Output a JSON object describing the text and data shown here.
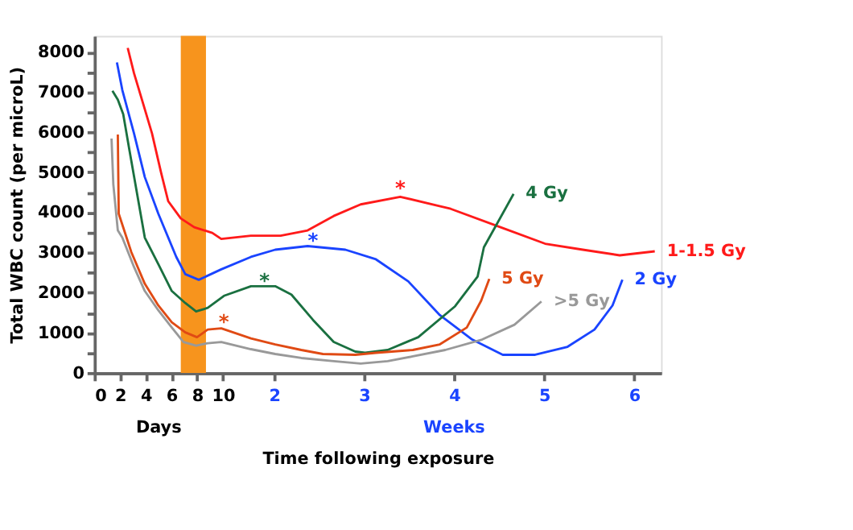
{
  "chart_data": {
    "type": "line",
    "xlabel": "Time following exposure",
    "ylabel": "Total WBC count (per microL)",
    "xlim": [
      0,
      6.3
    ],
    "xticks": [
      2,
      3,
      4,
      5,
      6
    ],
    "x2lim": [
      0,
      44.1
    ],
    "x2ticks": [
      0,
      2,
      4,
      6,
      8,
      10
    ],
    "ylim": [
      0,
      8400
    ],
    "yticks": [
      0,
      {
        "value": 500,
        "label": null
      },
      1000,
      {
        "value": 1500,
        "label": null
      },
      2000,
      {
        "value": 2500,
        "label": null
      },
      3000,
      {
        "value": 3500,
        "label": null
      },
      4000,
      {
        "value": 4500,
        "label": null
      },
      5000,
      {
        "value": 5500,
        "label": null
      },
      6000,
      {
        "value": 6500,
        "label": null
      },
      7000,
      {
        "value": 7500,
        "label": null
      },
      8000
    ],
    "bands": [
      {
        "axis": "x",
        "from": 0.96,
        "to": 1.24,
        "color": "#f7941d"
      }
    ],
    "annotations": [
      "Days",
      "Weeks",
      {
        "text": "*",
        "x": 3.4,
        "y": 4580
      },
      {
        "text": "*",
        "x": 2.43,
        "y": 3290
      },
      {
        "text": "*",
        "x": 1.89,
        "y": 2280
      },
      {
        "text": "*",
        "x": 1.44,
        "y": 1260
      }
    ],
    "series": [
      {
        "name": "1-1.5 Gy",
        "color": "#ff1a1a",
        "x": [
          0.37,
          0.44,
          0.56,
          0.64,
          0.74,
          0.82,
          0.96,
          1.11,
          1.31,
          1.41,
          1.74,
          2.07,
          2.37,
          2.66,
          2.96,
          3.4,
          3.96,
          4.54,
          5.01,
          5.43,
          5.84,
          6.23
        ],
        "values": [
          8100,
          7470,
          6570,
          5970,
          5000,
          4280,
          3850,
          3630,
          3490,
          3340,
          3420,
          3420,
          3550,
          3910,
          4200,
          4390,
          4090,
          3610,
          3220,
          3070,
          2930,
          3030
        ]
      },
      {
        "name": "2 Gy",
        "color": "#1a44ff",
        "x": [
          0.25,
          0.31,
          0.44,
          0.56,
          0.71,
          0.91,
          1.01,
          1.16,
          1.41,
          1.74,
          2.01,
          2.37,
          2.79,
          3.13,
          3.49,
          3.84,
          4.2,
          4.54,
          4.9,
          5.26,
          5.56,
          5.76,
          5.87
        ],
        "values": [
          7740,
          7050,
          5970,
          4880,
          3970,
          2890,
          2460,
          2320,
          2580,
          2890,
          3070,
          3160,
          3070,
          2830,
          2280,
          1440,
          830,
          450,
          450,
          650,
          1080,
          1680,
          2320
        ]
      },
      {
        "name": "4 Gy",
        "color": "#1a7040",
        "x": [
          0.2,
          0.26,
          0.32,
          0.39,
          0.56,
          0.71,
          0.86,
          1.01,
          1.13,
          1.26,
          1.44,
          1.74,
          2.01,
          2.19,
          2.43,
          2.66,
          2.9,
          3.01,
          3.26,
          3.6,
          4.01,
          4.26,
          4.33,
          4.66
        ],
        "values": [
          7030,
          6810,
          6450,
          5540,
          3370,
          2710,
          2040,
          1740,
          1530,
          1620,
          1920,
          2160,
          2160,
          1950,
          1320,
          770,
          530,
          500,
          570,
          890,
          1660,
          2400,
          3130,
          4460
        ]
      },
      {
        "name": "5 Gy",
        "color": "#e04a14",
        "x": [
          0.26,
          0.27,
          0.41,
          0.56,
          0.71,
          0.86,
          1.01,
          1.14,
          1.26,
          1.41,
          1.74,
          2.01,
          2.3,
          2.54,
          2.9,
          3.13,
          3.54,
          3.84,
          4.14,
          4.3,
          4.39
        ],
        "values": [
          5940,
          3970,
          3010,
          2220,
          1680,
          1260,
          1010,
          890,
          1080,
          1110,
          860,
          710,
          570,
          470,
          450,
          500,
          570,
          710,
          1130,
          1800,
          2340
        ]
      },
      {
        "name": ">5 Gy",
        "color": "#999999",
        "x": [
          0.19,
          0.21,
          0.26,
          0.31,
          0.44,
          0.56,
          0.71,
          0.86,
          0.99,
          1.13,
          1.26,
          1.41,
          1.74,
          2.01,
          2.3,
          2.66,
          2.96,
          3.26,
          3.54,
          3.9,
          4.31,
          4.67,
          4.97
        ],
        "values": [
          5840,
          4700,
          3550,
          3370,
          2640,
          2040,
          1560,
          1130,
          770,
          680,
          740,
          770,
          590,
          470,
          370,
          290,
          230,
          290,
          410,
          570,
          830,
          1200,
          1780
        ]
      }
    ]
  }
}
